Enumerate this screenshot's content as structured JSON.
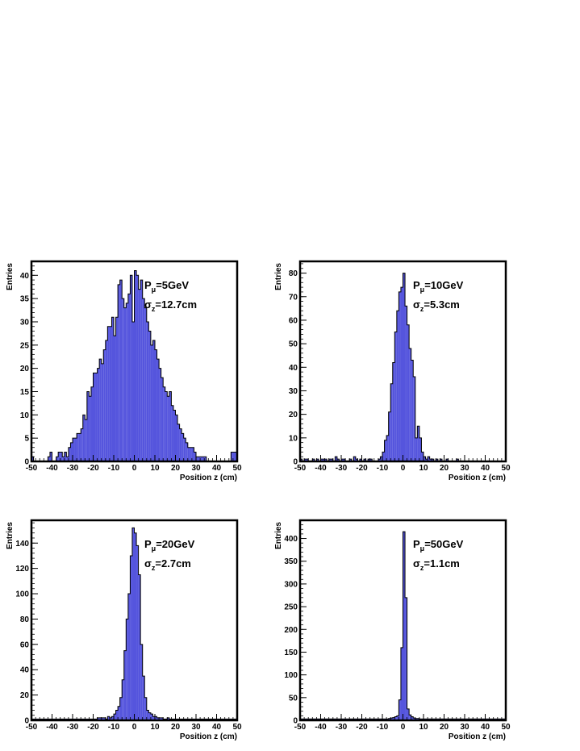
{
  "chart_data": [
    {
      "type": "bar",
      "xlabel": "Position z (cm)",
      "ylabel": "Entries",
      "xlim": [
        -50,
        50
      ],
      "ylim": [
        0,
        43
      ],
      "xticks": [
        -50,
        -40,
        -30,
        -20,
        -10,
        0,
        10,
        20,
        30,
        40,
        50
      ],
      "yticks": [
        0,
        5,
        10,
        15,
        20,
        25,
        30,
        35,
        40
      ],
      "annotation": {
        "momentum_label": "P",
        "momentum_sub": "μ",
        "momentum_value": "=5GeV",
        "sigma_label": "σ",
        "sigma_sub": "z",
        "sigma_value": "=12.7cm"
      },
      "bin_width": 1,
      "x": [
        -50,
        -49,
        -48,
        -47,
        -46,
        -45,
        -44,
        -43,
        -42,
        -41,
        -40,
        -39,
        -38,
        -37,
        -36,
        -35,
        -34,
        -33,
        -32,
        -31,
        -30,
        -29,
        -28,
        -27,
        -26,
        -25,
        -24,
        -23,
        -22,
        -21,
        -20,
        -19,
        -18,
        -17,
        -16,
        -15,
        -14,
        -13,
        -12,
        -11,
        -10,
        -9,
        -8,
        -7,
        -6,
        -5,
        -4,
        -3,
        -2,
        -1,
        0,
        1,
        2,
        3,
        4,
        5,
        6,
        7,
        8,
        9,
        10,
        11,
        12,
        13,
        14,
        15,
        16,
        17,
        18,
        19,
        20,
        21,
        22,
        23,
        24,
        25,
        26,
        27,
        28,
        29,
        30,
        31,
        32,
        33,
        34,
        35,
        36,
        37,
        38,
        39,
        40,
        41,
        42,
        43,
        44,
        45,
        46,
        47,
        48,
        49
      ],
      "values": [
        1,
        0,
        0,
        0,
        0,
        0,
        0,
        0,
        1,
        2,
        0,
        0,
        1,
        2,
        2,
        1,
        2,
        1,
        3,
        4,
        5,
        5,
        6,
        6,
        7,
        10,
        9,
        15,
        14,
        16,
        19,
        19,
        20,
        22,
        21,
        24,
        26,
        29,
        29,
        31,
        27,
        31,
        38,
        39,
        35,
        33,
        34,
        36,
        40,
        30,
        41,
        40,
        37,
        39,
        35,
        33,
        30,
        28,
        25,
        26,
        24,
        22,
        20,
        18,
        16,
        15,
        14,
        15,
        12,
        11,
        10,
        8,
        7,
        6,
        5,
        4,
        3,
        3,
        3,
        2,
        1,
        1,
        1,
        1,
        1,
        0,
        0,
        0,
        0,
        0,
        0,
        0,
        0,
        0,
        0,
        0,
        0,
        2,
        2,
        2
      ]
    },
    {
      "type": "bar",
      "xlabel": "Position z (cm)",
      "ylabel": "Entries",
      "xlim": [
        -50,
        50
      ],
      "ylim": [
        0,
        85
      ],
      "xticks": [
        -50,
        -40,
        -30,
        -20,
        -10,
        0,
        10,
        20,
        30,
        40,
        50
      ],
      "yticks": [
        0,
        10,
        20,
        30,
        40,
        50,
        60,
        70,
        80
      ],
      "annotation": {
        "momentum_label": "P",
        "momentum_sub": "μ",
        "momentum_value": "=10GeV",
        "sigma_label": "σ",
        "sigma_sub": "z",
        "sigma_value": "=5.3cm"
      },
      "bin_width": 1,
      "x": [
        -50,
        -49,
        -48,
        -47,
        -46,
        -45,
        -44,
        -43,
        -42,
        -41,
        -40,
        -39,
        -38,
        -37,
        -36,
        -35,
        -34,
        -33,
        -32,
        -31,
        -30,
        -29,
        -28,
        -27,
        -26,
        -25,
        -24,
        -23,
        -22,
        -21,
        -20,
        -19,
        -18,
        -17,
        -16,
        -15,
        -14,
        -13,
        -12,
        -11,
        -10,
        -9,
        -8,
        -7,
        -6,
        -5,
        -4,
        -3,
        -2,
        -1,
        0,
        1,
        2,
        3,
        4,
        5,
        6,
        7,
        8,
        9,
        10,
        11,
        12,
        13,
        14,
        15,
        16,
        17,
        18,
        19,
        20,
        21,
        22,
        23,
        24,
        25,
        26,
        27,
        28,
        29,
        30,
        31,
        32,
        33,
        34,
        35,
        36,
        37,
        38,
        39,
        40,
        41,
        42,
        43,
        44,
        45,
        46,
        47,
        48,
        49
      ],
      "values": [
        1,
        0,
        1,
        1,
        0,
        0,
        1,
        0,
        1,
        0,
        1,
        1,
        1,
        0,
        1,
        1,
        0,
        2,
        1,
        0,
        1,
        1,
        0,
        0,
        1,
        0,
        2,
        1,
        0,
        1,
        0,
        1,
        0,
        1,
        1,
        0,
        0,
        0,
        1,
        2,
        4,
        9,
        11,
        21,
        33,
        42,
        55,
        64,
        72,
        74,
        80,
        66,
        58,
        48,
        43,
        36,
        10,
        15,
        10,
        4,
        2,
        1,
        2,
        1,
        1,
        0,
        1,
        0,
        1,
        0,
        0,
        1,
        0,
        0,
        0,
        0,
        1,
        0,
        0,
        0,
        0,
        0,
        0,
        0,
        0,
        0,
        0,
        0,
        0,
        0,
        0,
        0,
        0,
        0,
        0,
        0,
        0,
        0,
        0,
        0
      ]
    },
    {
      "type": "bar",
      "xlabel": "Position z (cm)",
      "ylabel": "Entries",
      "xlim": [
        -50,
        50
      ],
      "ylim": [
        0,
        158
      ],
      "xticks": [
        -50,
        -40,
        -30,
        -20,
        -10,
        0,
        10,
        20,
        30,
        40,
        50
      ],
      "yticks": [
        0,
        20,
        40,
        60,
        80,
        100,
        120,
        140
      ],
      "annotation": {
        "momentum_label": "P",
        "momentum_sub": "μ",
        "momentum_value": "=20GeV",
        "sigma_label": "σ",
        "sigma_sub": "z",
        "sigma_value": "=2.7cm"
      },
      "bin_width": 1,
      "x": [
        -50,
        -49,
        -48,
        -47,
        -46,
        -45,
        -44,
        -43,
        -42,
        -41,
        -40,
        -39,
        -38,
        -37,
        -36,
        -35,
        -34,
        -33,
        -32,
        -31,
        -30,
        -29,
        -28,
        -27,
        -26,
        -25,
        -24,
        -23,
        -22,
        -21,
        -20,
        -19,
        -18,
        -17,
        -16,
        -15,
        -14,
        -13,
        -12,
        -11,
        -10,
        -9,
        -8,
        -7,
        -6,
        -5,
        -4,
        -3,
        -2,
        -1,
        0,
        1,
        2,
        3,
        4,
        5,
        6,
        7,
        8,
        9,
        10,
        11,
        12,
        13,
        14,
        15,
        16,
        17,
        18,
        19,
        20,
        21,
        22,
        23,
        24,
        25,
        26,
        27,
        28,
        29,
        30,
        31,
        32,
        33,
        34,
        35,
        36,
        37,
        38,
        39,
        40,
        41,
        42,
        43,
        44,
        45,
        46,
        47,
        48,
        49
      ],
      "values": [
        1,
        1,
        1,
        1,
        1,
        1,
        1,
        1,
        1,
        1,
        1,
        1,
        1,
        1,
        1,
        1,
        1,
        1,
        1,
        1,
        1,
        1,
        1,
        1,
        1,
        1,
        1,
        1,
        1,
        1,
        1,
        1,
        2,
        2,
        2,
        2,
        1,
        3,
        2,
        3,
        5,
        8,
        11,
        18,
        32,
        55,
        80,
        100,
        130,
        152,
        148,
        138,
        115,
        60,
        35,
        18,
        8,
        6,
        5,
        3,
        3,
        2,
        2,
        2,
        1,
        1,
        2,
        1,
        1,
        1,
        1,
        1,
        1,
        1,
        1,
        1,
        1,
        1,
        1,
        1,
        1,
        1,
        1,
        1,
        1,
        1,
        1,
        1,
        1,
        1,
        1,
        1,
        1,
        1,
        1,
        1,
        1,
        1,
        1,
        1
      ]
    },
    {
      "type": "bar",
      "xlabel": "Position z (cm)",
      "ylabel": "Entries",
      "xlim": [
        -50,
        50
      ],
      "ylim": [
        0,
        440
      ],
      "xticks": [
        -50,
        -40,
        -30,
        -20,
        -10,
        0,
        10,
        20,
        30,
        40,
        50
      ],
      "yticks": [
        0,
        50,
        100,
        150,
        200,
        250,
        300,
        350,
        400
      ],
      "annotation": {
        "momentum_label": "P",
        "momentum_sub": "μ",
        "momentum_value": "=50GeV",
        "sigma_label": "σ",
        "sigma_sub": "z",
        "sigma_value": "=1.1cm"
      },
      "bin_width": 1,
      "x": [
        -50,
        -49,
        -48,
        -47,
        -46,
        -45,
        -44,
        -43,
        -42,
        -41,
        -40,
        -39,
        -38,
        -37,
        -36,
        -35,
        -34,
        -33,
        -32,
        -31,
        -30,
        -29,
        -28,
        -27,
        -26,
        -25,
        -24,
        -23,
        -22,
        -21,
        -20,
        -19,
        -18,
        -17,
        -16,
        -15,
        -14,
        -13,
        -12,
        -11,
        -10,
        -9,
        -8,
        -7,
        -6,
        -5,
        -4,
        -3,
        -2,
        -1,
        0,
        1,
        2,
        3,
        4,
        5,
        6,
        7,
        8,
        9,
        10,
        11,
        12,
        13,
        14,
        15,
        16,
        17,
        18,
        19,
        20,
        21,
        22,
        23,
        24,
        25,
        26,
        27,
        28,
        29,
        30,
        31,
        32,
        33,
        34,
        35,
        36,
        37,
        38,
        39,
        40,
        41,
        42,
        43,
        44,
        45,
        46,
        47,
        48,
        49
      ],
      "values": [
        3,
        3,
        3,
        3,
        3,
        3,
        3,
        3,
        3,
        3,
        3,
        3,
        3,
        3,
        3,
        3,
        3,
        3,
        3,
        3,
        3,
        3,
        3,
        3,
        3,
        3,
        3,
        3,
        3,
        3,
        3,
        3,
        3,
        3,
        3,
        3,
        3,
        3,
        3,
        3,
        3,
        3,
        3,
        4,
        5,
        6,
        8,
        10,
        45,
        160,
        415,
        270,
        25,
        12,
        8,
        5,
        4,
        4,
        3,
        3,
        3,
        3,
        3,
        3,
        3,
        3,
        3,
        3,
        3,
        3,
        3,
        3,
        3,
        3,
        3,
        3,
        3,
        3,
        3,
        3,
        3,
        3,
        3,
        3,
        3,
        3,
        3,
        3,
        3,
        3,
        3,
        3,
        3,
        3,
        3,
        3,
        3,
        3,
        3,
        3
      ]
    }
  ],
  "colors": {
    "fill": "#5555dd",
    "line": "#000000",
    "frame": "#000000"
  }
}
